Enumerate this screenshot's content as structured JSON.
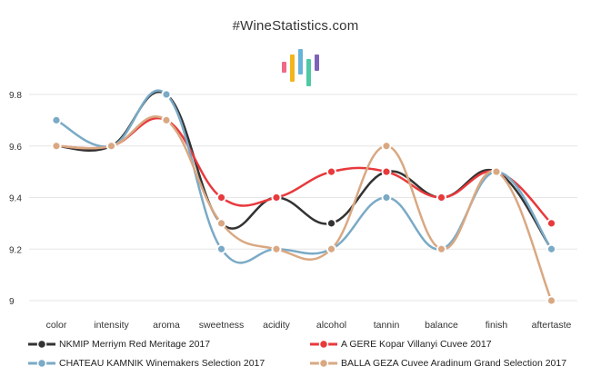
{
  "site_title": "#WineStatistics.com",
  "chart_data": {
    "type": "line",
    "categories": [
      "color",
      "intensity",
      "aroma",
      "sweetness",
      "acidity",
      "alcohol",
      "tannin",
      "balance",
      "finish",
      "aftertaste"
    ],
    "ylim": [
      9.0,
      9.8
    ],
    "yticks": [
      "9",
      "9.2",
      "9.4",
      "9.6",
      "9.8"
    ],
    "grid": true,
    "legend_position": "bottom",
    "series": [
      {
        "name": "NKMIP Merriym Red Meritage 2017",
        "color": "#333333",
        "values": [
          9.6,
          9.6,
          9.8,
          9.3,
          9.4,
          9.3,
          9.5,
          9.4,
          9.5,
          9.2
        ]
      },
      {
        "name": "A GERE Kopar Villanyi Cuvee 2017",
        "color": "#e8393c",
        "values": [
          9.6,
          9.6,
          9.7,
          9.4,
          9.4,
          9.5,
          9.5,
          9.4,
          9.5,
          9.3
        ]
      },
      {
        "name": "CHATEAU KAMNIK Winemakers Selection 2017",
        "color": "#7aaac6",
        "values": [
          9.7,
          9.6,
          9.8,
          9.2,
          9.2,
          9.2,
          9.4,
          9.2,
          9.5,
          9.2
        ]
      },
      {
        "name": "BALLA GEZA Cuvee Aradinum Grand Selection 2017",
        "color": "#d9a882",
        "values": [
          9.6,
          9.6,
          9.7,
          9.3,
          9.2,
          9.2,
          9.6,
          9.2,
          9.5,
          9.0
        ]
      }
    ]
  }
}
